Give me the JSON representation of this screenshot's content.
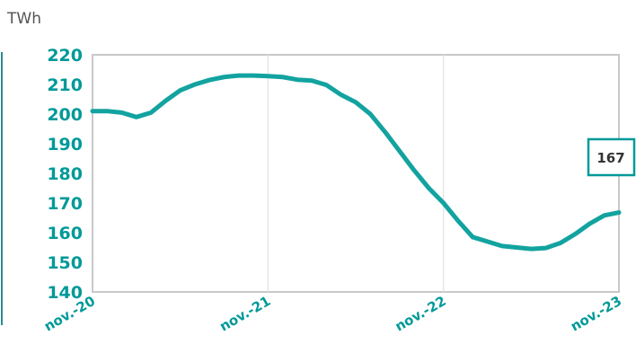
{
  "chart_data": {
    "type": "line",
    "unit_label": "TWh",
    "x_tick_labels": [
      "nov.-20",
      "nov.-21",
      "nov.-22",
      "nov.-23"
    ],
    "ylim": [
      140,
      220
    ],
    "y_ticks": [
      140,
      150,
      160,
      170,
      180,
      190,
      200,
      210,
      220
    ],
    "grid": "vertical",
    "end_label": "167",
    "series": [
      {
        "color": "#12a3a0",
        "values": [
          201,
          201,
          200.5,
          199,
          200.5,
          204.5,
          208,
          210,
          211.5,
          212.5,
          213,
          213,
          212.8,
          212.5,
          211.6,
          211.3,
          209.8,
          206.5,
          204,
          200,
          194,
          187.5,
          181,
          175,
          170,
          164,
          158.5,
          157,
          155.5,
          155,
          154.5,
          154.8,
          156.5,
          159.5,
          163,
          165.8,
          166.8
        ]
      }
    ]
  }
}
